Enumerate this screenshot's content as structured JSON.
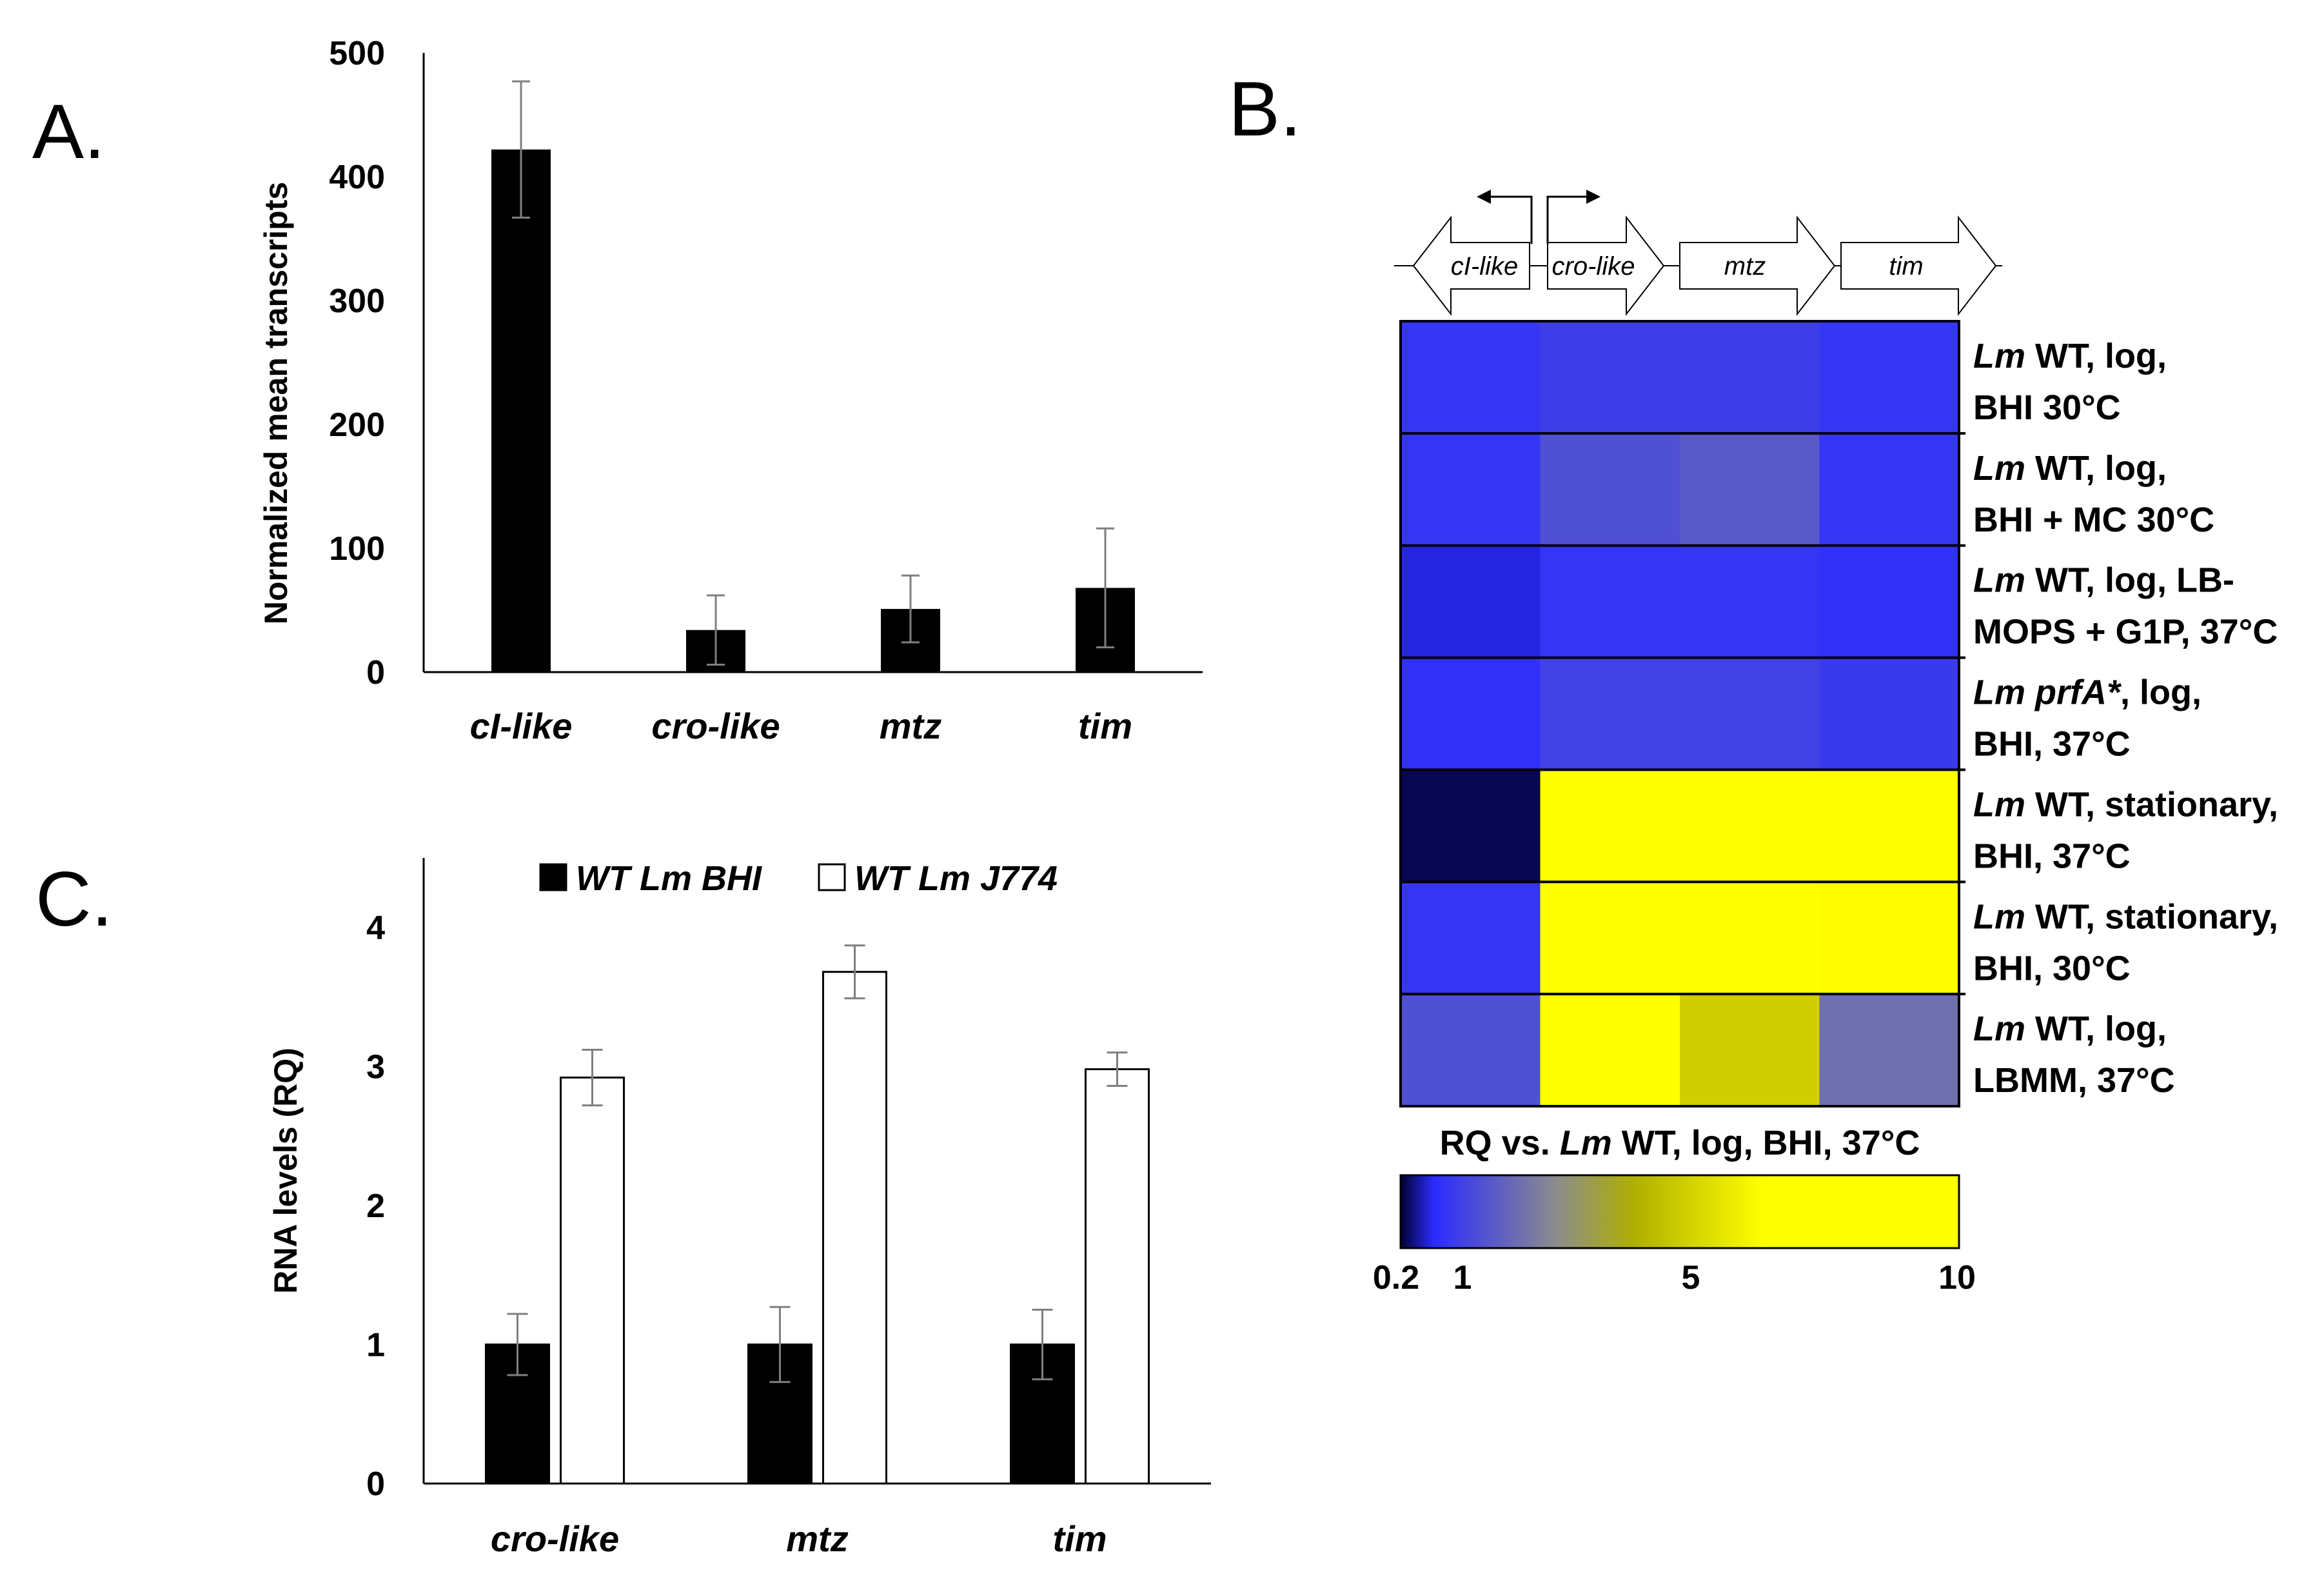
{
  "panels": {
    "a": "A.",
    "b": "B.",
    "c": "C."
  },
  "chart_data": [
    {
      "id": "A",
      "type": "bar",
      "ylabel": "Normalized mean transcripts",
      "ylim": [
        0,
        500
      ],
      "yticks": [
        "0",
        "100",
        "200",
        "300",
        "400",
        "500"
      ],
      "categories": [
        "cI-like",
        "cro-like",
        "mtz",
        "tim"
      ],
      "values": [
        422,
        34,
        51,
        68
      ],
      "errors": [
        55,
        28,
        27,
        48
      ],
      "bar_color": "#000000"
    },
    {
      "id": "B",
      "type": "heatmap",
      "genes": [
        "cI-like",
        "cro-like",
        "mtz",
        "tim"
      ],
      "rows": [
        {
          "italic": "Lm",
          "rest": " WT, log,",
          "line2": "BHI 30°C",
          "values": [
            1.0,
            1.2,
            1.2,
            1.0
          ]
        },
        {
          "italic": "Lm",
          "rest": " WT, log,",
          "line2": "BHI + MC 30°C",
          "values": [
            1.0,
            1.6,
            1.8,
            1.0
          ]
        },
        {
          "italic": "Lm",
          "rest": " WT, log, LB-",
          "line2": "MOPS + G1P, 37°C",
          "values": [
            0.7,
            1.0,
            1.0,
            0.9
          ]
        },
        {
          "italic": "Lm prfA*",
          "rest": ", log,",
          "line2": "BHI, 37°C",
          "values": [
            0.9,
            1.3,
            1.3,
            1.1
          ]
        },
        {
          "italic": "Lm",
          "rest": " WT, stationary,",
          "line2": "BHI, 37°C",
          "values": [
            0.3,
            10.0,
            10.0,
            7.0
          ]
        },
        {
          "italic": "Lm",
          "rest": " WT, stationary,",
          "line2": "BHI, 30°C",
          "values": [
            1.0,
            10.0,
            7.0,
            6.5
          ]
        },
        {
          "italic": "Lm",
          "rest": " WT, log,",
          "line2": "LBMM, 37°C",
          "values": [
            1.6,
            8.0,
            5.2,
            2.3
          ]
        }
      ],
      "colorbar": {
        "title_pre": "RQ vs. ",
        "title_italic": "Lm",
        "title_post": " WT, log, BHI, 37°C",
        "ticks": [
          "0.2",
          "1",
          "5",
          "10"
        ],
        "tick_values": [
          0.2,
          1,
          5,
          10
        ],
        "range": [
          0.2,
          10
        ]
      },
      "colors": {
        "low": "#000030",
        "mid": "#2b2bff",
        "gray": "#8c8c8c",
        "olive": "#b0b000",
        "high": "#ffff00"
      }
    },
    {
      "id": "C",
      "type": "bar",
      "ylabel": "RNA levels (RQ)",
      "ylim": [
        0,
        4.5
      ],
      "yticks": [
        "0",
        "1",
        "2",
        "3",
        "4"
      ],
      "categories": [
        "cro-like",
        "mtz",
        "tim"
      ],
      "series": [
        {
          "name": "WT Lm BHI",
          "values": [
            1.0,
            1.0,
            1.0
          ],
          "errors": [
            0.22,
            0.27,
            0.25
          ],
          "fill": "#000000"
        },
        {
          "name": "WT Lm J774",
          "values": [
            2.92,
            3.68,
            2.98
          ],
          "errors": [
            0.2,
            0.19,
            0.12
          ],
          "fill": "#ffffff"
        }
      ]
    }
  ]
}
